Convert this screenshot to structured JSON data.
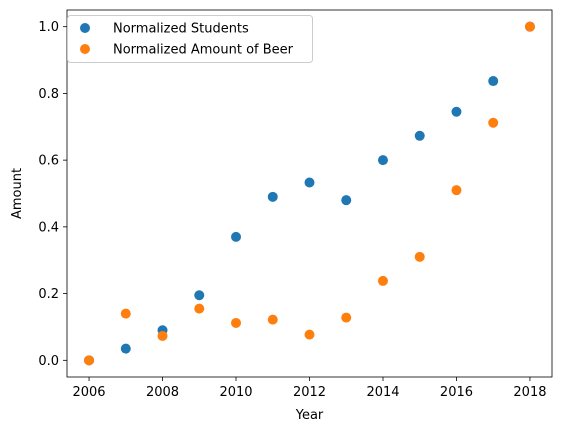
{
  "chart_data": {
    "type": "scatter",
    "title": "",
    "xlabel": "Year",
    "ylabel": "Amount",
    "xlim": [
      2005.4,
      2018.6
    ],
    "ylim": [
      -0.05,
      1.05
    ],
    "x_ticks": [
      2006,
      2008,
      2010,
      2012,
      2014,
      2016,
      2018
    ],
    "y_ticks": [
      0.0,
      0.2,
      0.4,
      0.6,
      0.8,
      1.0
    ],
    "y_tick_labels": [
      "0.0",
      "0.2",
      "0.4",
      "0.6",
      "0.8",
      "1.0"
    ],
    "grid": false,
    "legend_position": "upper-left",
    "x": [
      2006,
      2007,
      2008,
      2009,
      2010,
      2011,
      2012,
      2013,
      2014,
      2015,
      2016,
      2017,
      2018
    ],
    "series": [
      {
        "name": "Normalized Students",
        "color": "#1f77b4",
        "values": [
          0.0,
          0.035,
          0.09,
          0.195,
          0.37,
          0.49,
          0.533,
          0.48,
          0.6,
          0.673,
          0.745,
          0.837,
          1.0
        ]
      },
      {
        "name": "Normalized Amount of Beer",
        "color": "#ff7f0e",
        "values": [
          0.0,
          0.14,
          0.073,
          0.155,
          0.112,
          0.122,
          0.077,
          0.128,
          0.238,
          0.31,
          0.51,
          0.712,
          1.0
        ]
      }
    ]
  }
}
